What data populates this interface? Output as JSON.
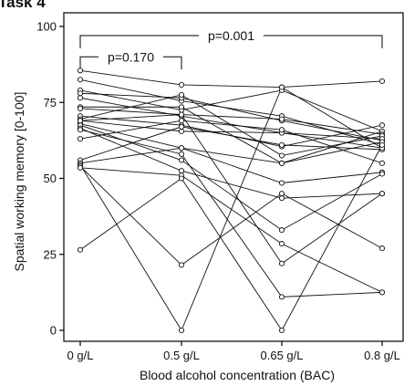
{
  "panel_title": "Task 4",
  "chart_data": {
    "type": "line",
    "xlabel": "Blood alcohol concentration (BAC)",
    "ylabel": "Spatial working memory [0-100]",
    "categories": [
      "0 g/L",
      "0.5 g/L",
      "0.65 g/L",
      "0.8 g/L"
    ],
    "ylim": [
      0,
      100
    ],
    "yticks": [
      "0",
      "25",
      "50",
      "75",
      "100"
    ],
    "grid": false,
    "legend": "none",
    "annotations": [
      {
        "from": "0 g/L",
        "to": "0.5 g/L",
        "label": "p=0.170",
        "level": 90
      },
      {
        "from": "0 g/L",
        "to": "0.8 g/L",
        "label": "p=0.001",
        "level": 97
      }
    ],
    "series": [
      {
        "values": [
          85.5,
          80.8,
          80.0,
          82.0
        ]
      },
      {
        "values": [
          82.5,
          75.5,
          70.5,
          61.0
        ]
      },
      {
        "values": [
          79.0,
          72.5,
          79.0,
          65.5
        ]
      },
      {
        "values": [
          78.0,
          76.5,
          69.0,
          62.5
        ]
      },
      {
        "values": [
          76.5,
          70.5,
          65.0,
          60.0
        ]
      },
      {
        "values": [
          73.5,
          73.5,
          55.0,
          65.5
        ]
      },
      {
        "values": [
          73.0,
          71.0,
          69.5,
          64.5
        ]
      },
      {
        "values": [
          70.5,
          67.5,
          60.5,
          67.5
        ]
      },
      {
        "values": [
          69.5,
          77.5,
          57.5,
          64.0
        ]
      },
      {
        "values": [
          69.0,
          65.5,
          65.0,
          63.0
        ]
      },
      {
        "values": [
          68.0,
          60.0,
          48.5,
          52.0
        ]
      },
      {
        "values": [
          67.5,
          56.0,
          33.0,
          51.5
        ]
      },
      {
        "values": [
          66.5,
          52.5,
          43.5,
          45.0
        ]
      },
      {
        "values": [
          63.0,
          69.0,
          66.0,
          55.0
        ]
      },
      {
        "values": [
          56.0,
          67.0,
          61.0,
          59.5
        ]
      },
      {
        "values": [
          55.0,
          60.0,
          55.0,
          62.0
        ]
      },
      {
        "values": [
          54.5,
          0.0,
          80.0,
          60.0
        ]
      },
      {
        "values": [
          54.0,
          21.5,
          45.0,
          27.0
        ]
      },
      {
        "values": [
          53.5,
          51.0,
          28.5,
          12.5
        ]
      },
      {
        "values": [
          26.5,
          50.0,
          0.0,
          61.0
        ]
      },
      {
        "values": [
          66.0,
          58.0,
          11.0,
          12.5
        ]
      },
      {
        "values": [
          69.0,
          71.0,
          22.0,
          45.0
        ]
      }
    ]
  }
}
